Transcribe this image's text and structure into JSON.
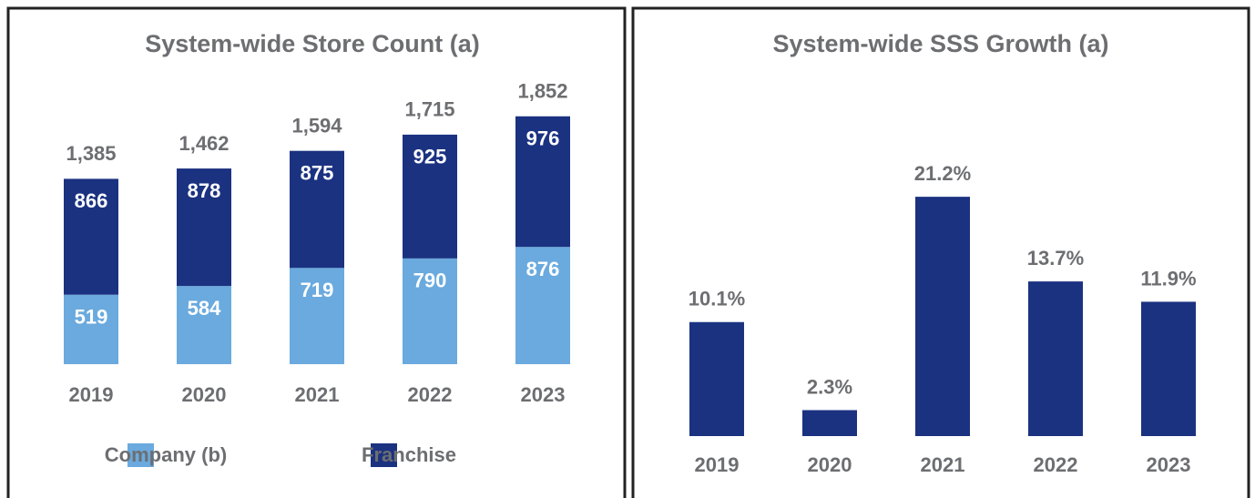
{
  "chart_data": [
    {
      "type": "stacked-bar",
      "title": "System-wide Store Count (a)",
      "categories": [
        "2019",
        "2020",
        "2021",
        "2022",
        "2023"
      ],
      "series": [
        {
          "name": "Company (b)",
          "color": "#6aaade",
          "values": [
            519,
            584,
            719,
            790,
            876
          ]
        },
        {
          "name": "Franchise",
          "color": "#1b3281",
          "values": [
            866,
            878,
            875,
            925,
            976
          ]
        }
      ],
      "totals": [
        1385,
        1462,
        1594,
        1715,
        1852
      ],
      "total_labels": [
        "1,385",
        "1,462",
        "1,594",
        "1,715",
        "1,852"
      ],
      "ylim": [
        0,
        2000
      ]
    },
    {
      "type": "bar",
      "title": "System-wide SSS Growth (a)",
      "categories": [
        "2019",
        "2020",
        "2021",
        "2022",
        "2023"
      ],
      "values": [
        10.1,
        2.3,
        21.2,
        13.7,
        11.9
      ],
      "value_labels": [
        "10.1%",
        "2.3%",
        "21.2%",
        "13.7%",
        "11.9%"
      ],
      "color": "#1b3281",
      "ylim": [
        0,
        25
      ]
    }
  ]
}
